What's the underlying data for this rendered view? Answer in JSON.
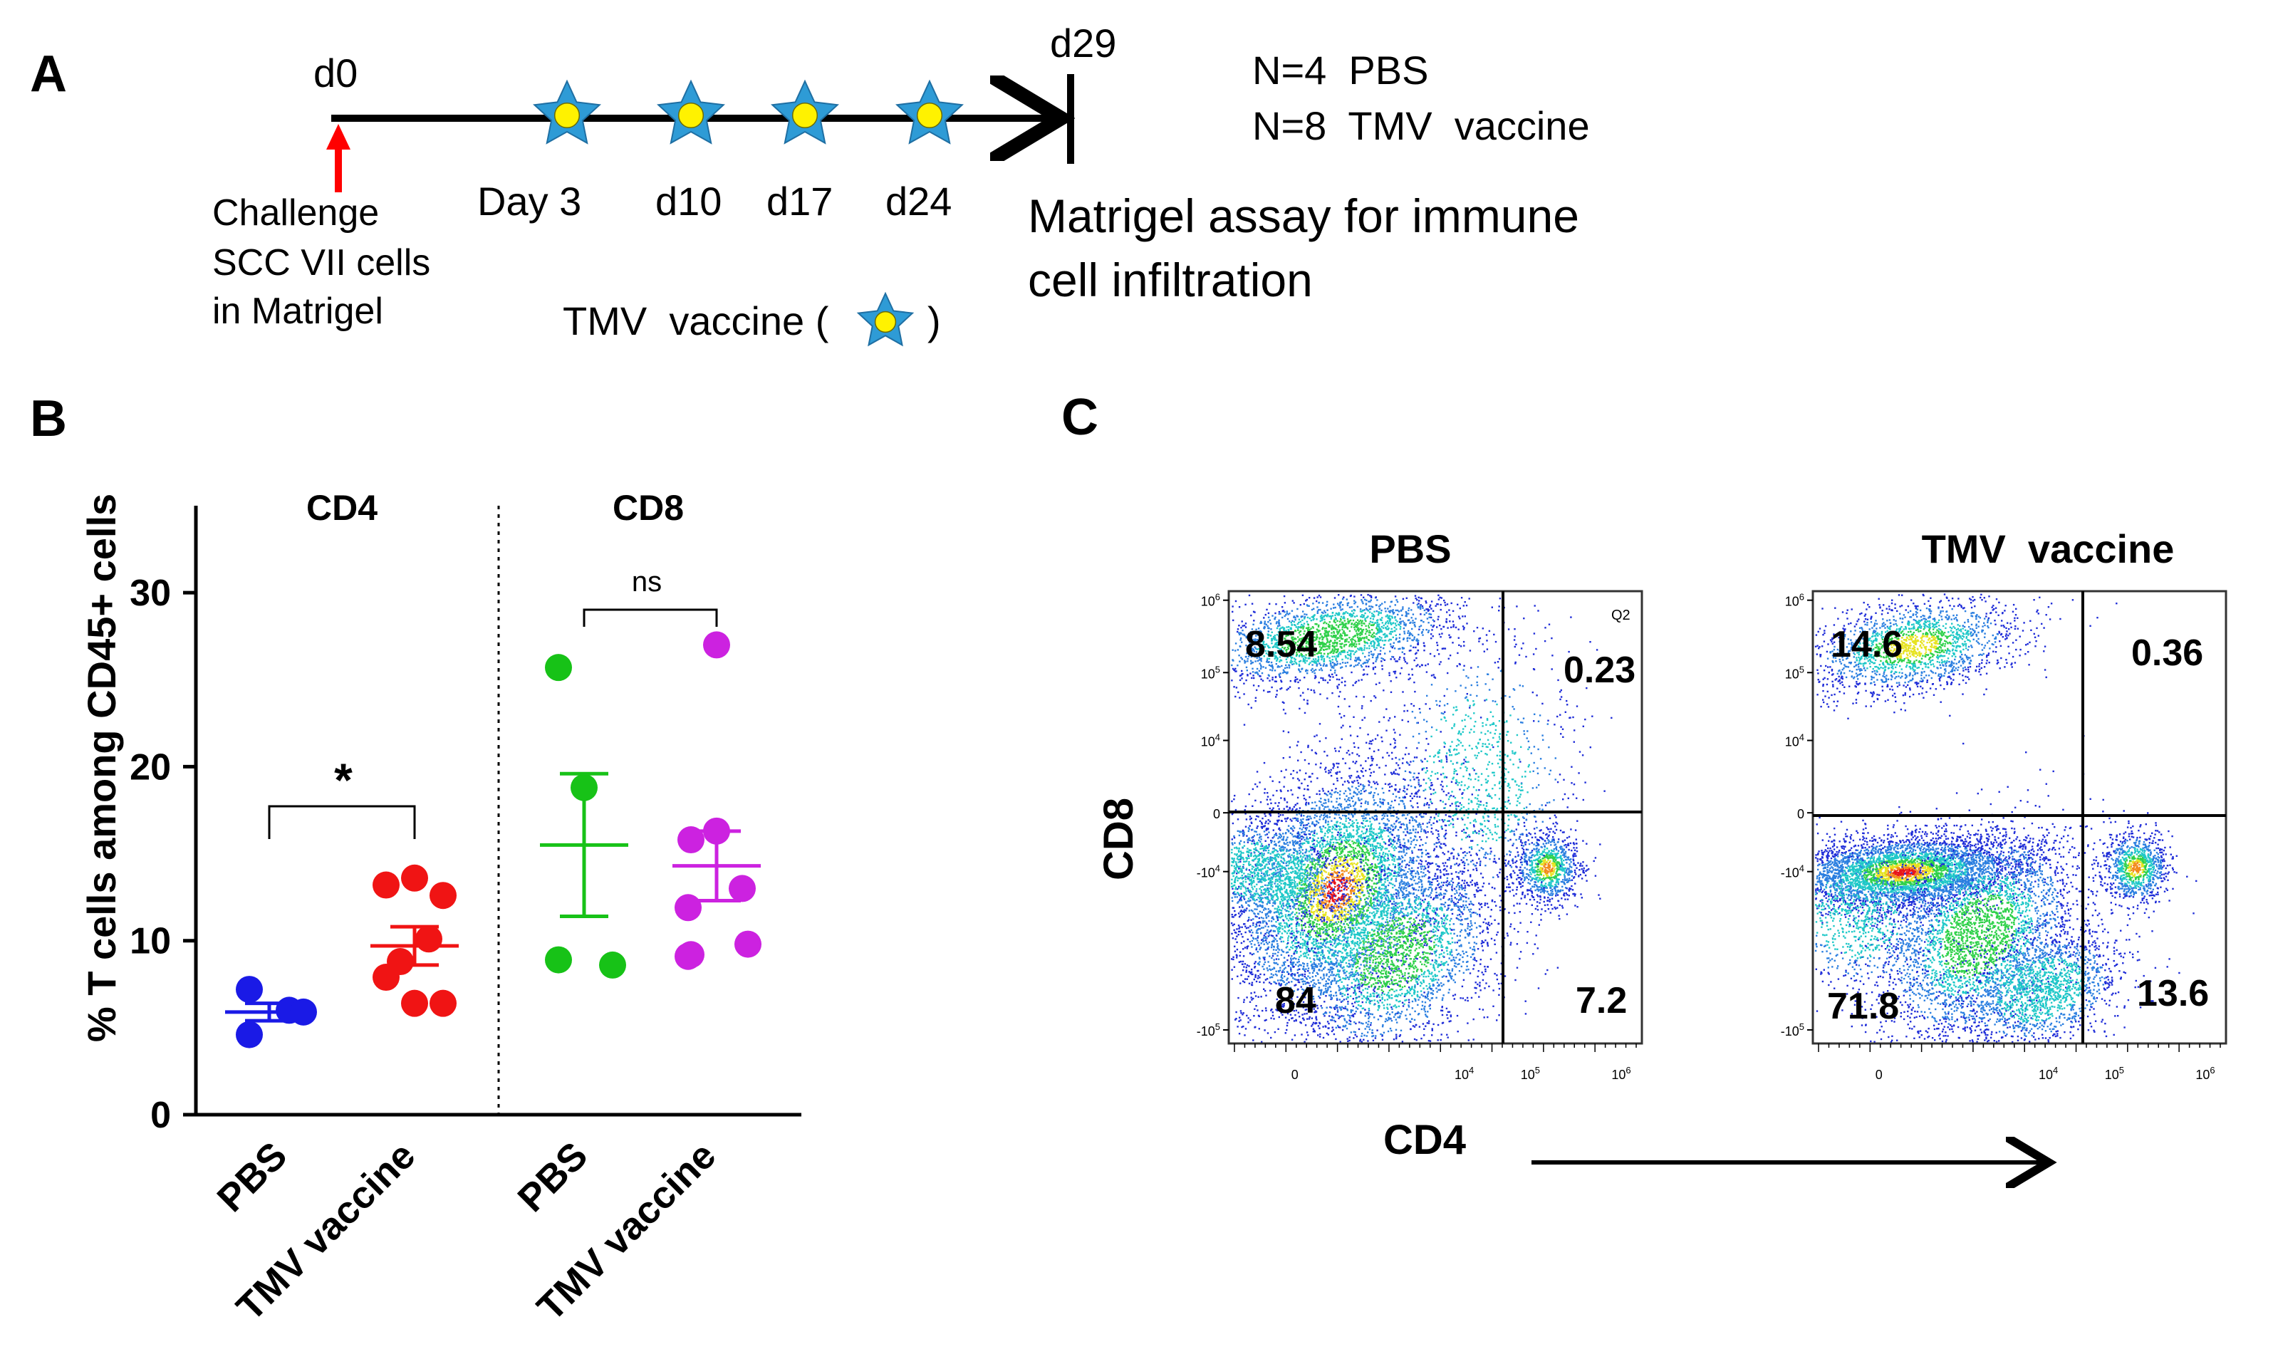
{
  "panels": {
    "a": {
      "letter": "A",
      "timeline": {
        "start_label": "d0",
        "end_label": "d29",
        "challenge_lines": [
          "Challenge",
          "SCC VII cells",
          "in Matrigel"
        ],
        "dose_labels": [
          "Day 3",
          "d10",
          "d17",
          "d24"
        ],
        "vaccine_legend_prefix": "TMV  vaccine (",
        "vaccine_legend_suffix": ")",
        "assay_lines": [
          "Matrigel assay for immune",
          "cell infiltration"
        ],
        "groups": [
          "N=4  PBS",
          "N=8  TMV  vaccine"
        ]
      },
      "colors": {
        "star": "#2E9BD6",
        "star_center": "#FFF200",
        "arrow": "#FF0000"
      }
    },
    "b": {
      "letter": "B",
      "group_labels": [
        "CD4",
        "CD8"
      ],
      "sig": {
        "cd4": "*",
        "cd8": "ns"
      }
    },
    "c": {
      "letter": "C",
      "plots": [
        {
          "title": "PBS",
          "q_tl": "8.54",
          "q_tr": "0.23",
          "q_bl": "84",
          "q_br": "7.2",
          "q2_label": "Q2"
        },
        {
          "title": "TMV  vaccine",
          "q_tl": "14.6",
          "q_tr": "0.36",
          "q_bl": "71.8",
          "q_br": "13.6"
        }
      ],
      "y_axis_label": "CD8",
      "x_axis_label": "CD4",
      "y_ticks": [
        {
          "base": "10",
          "exp": "6"
        },
        {
          "base": "10",
          "exp": "5"
        },
        {
          "base": "10",
          "exp": "4"
        },
        {
          "base": "0",
          "exp": ""
        },
        {
          "base": "-10",
          "exp": "4"
        },
        {
          "base": "-10",
          "exp": "5"
        }
      ],
      "x_ticks": [
        {
          "base": "0",
          "exp": ""
        },
        {
          "base": "10",
          "exp": "4"
        },
        {
          "base": "10",
          "exp": "5"
        },
        {
          "base": "10",
          "exp": "6"
        }
      ]
    }
  },
  "chart_data": {
    "type": "scatter",
    "title": "",
    "ylabel": "% T cells among CD45+ cells",
    "xlabel": "",
    "ylim": [
      0,
      35
    ],
    "yticks": [
      0,
      10,
      20,
      30
    ],
    "categories": [
      "PBS",
      "TMV vaccine",
      "PBS",
      "TMV vaccine"
    ],
    "groups": [
      "CD4",
      "CD8"
    ],
    "series": [
      {
        "name": "CD4 PBS",
        "color": "#1A1AE6",
        "values": [
          7.2,
          6.0,
          5.9,
          4.6
        ],
        "mean": 5.9,
        "sem": 0.5
      },
      {
        "name": "CD4 TMV vaccine",
        "color": "#F01414",
        "values": [
          13.2,
          13.6,
          12.6,
          10.1,
          8.8,
          7.9,
          6.4,
          6.4
        ],
        "mean": 9.7,
        "sem": 1.1
      },
      {
        "name": "CD8 PBS",
        "color": "#17C217",
        "values": [
          25.7,
          18.8,
          8.9,
          8.6
        ],
        "mean": 15.5,
        "sem": 4.1
      },
      {
        "name": "CD8 TMV vaccine",
        "color": "#CC22E0",
        "values": [
          27.0,
          16.3,
          15.8,
          13.0,
          11.9,
          9.2,
          9.1,
          9.8
        ],
        "mean": 14.3,
        "sem": 2.0
      }
    ],
    "annotations": [
      {
        "between": [
          "CD4 PBS",
          "CD4 TMV vaccine"
        ],
        "text": "*"
      },
      {
        "between": [
          "CD8 PBS",
          "CD8 TMV vaccine"
        ],
        "text": "ns"
      }
    ]
  }
}
